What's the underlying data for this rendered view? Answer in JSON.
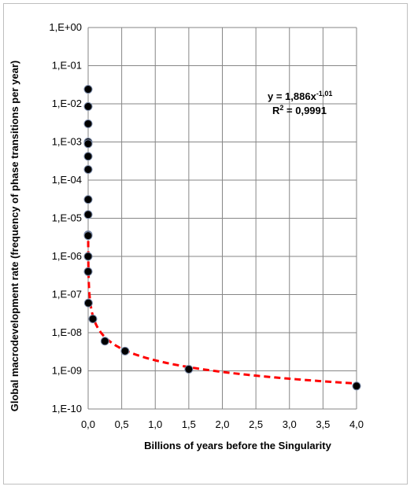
{
  "chart_data": {
    "type": "scatter",
    "title": "",
    "xlabel": "Billions of years before the Singularity",
    "ylabel": "Global macrodevelopment rate (frequency of phase transitions per year)",
    "x_scale": "linear",
    "y_scale": "log",
    "xlim": [
      0,
      4
    ],
    "ylim": [
      1e-10,
      1
    ],
    "grid": true,
    "x_ticks": [
      0,
      0.5,
      1,
      1.5,
      2,
      2.5,
      3,
      3.5,
      4
    ],
    "x_tick_labels": [
      "0,0",
      "0,5",
      "1,0",
      "1,5",
      "2,0",
      "2,5",
      "3,0",
      "3,5",
      "4,0"
    ],
    "y_ticks": [
      1,
      0.1,
      0.01,
      0.001,
      0.0001,
      1e-05,
      1e-06,
      1e-07,
      1e-08,
      1e-09,
      1e-10
    ],
    "y_tick_labels": [
      "1,E+00",
      "1,E-01",
      "1,E-02",
      "1,E-03",
      "1,E-04",
      "1,E-05",
      "1,E-06",
      "1,E-07",
      "1,E-08",
      "1,E-09",
      "1,E-10"
    ],
    "series": [
      {
        "type": "scatter",
        "color": "#000000",
        "x": [
          0.0,
          0.0,
          0.0,
          0.0,
          0.0,
          0.0,
          0.0,
          0.0,
          0.0,
          0.0,
          0.0,
          0.0,
          0.0,
          0.004,
          0.07,
          0.25,
          0.55,
          1.5,
          4.0
        ],
        "y": [
          0.024,
          0.0085,
          0.003,
          0.001,
          0.0009,
          0.00042,
          0.00019,
          3.1e-05,
          1.25e-05,
          3.7e-06,
          3.5e-06,
          1e-06,
          4e-07,
          6e-08,
          2.3e-08,
          6e-09,
          3.3e-09,
          1.1e-09,
          4e-10
        ]
      },
      {
        "type": "line",
        "style": "dashed",
        "color": "#ff0000",
        "formula": "y = 1.886e-9 * x^-1.01"
      }
    ],
    "annotations": {
      "equation_prefix": "y = 1,886x",
      "equation_exponent": "-1,01",
      "r2_prefix": "R",
      "r2_exponent": "2",
      "r2_value": " = 0,9991"
    }
  }
}
